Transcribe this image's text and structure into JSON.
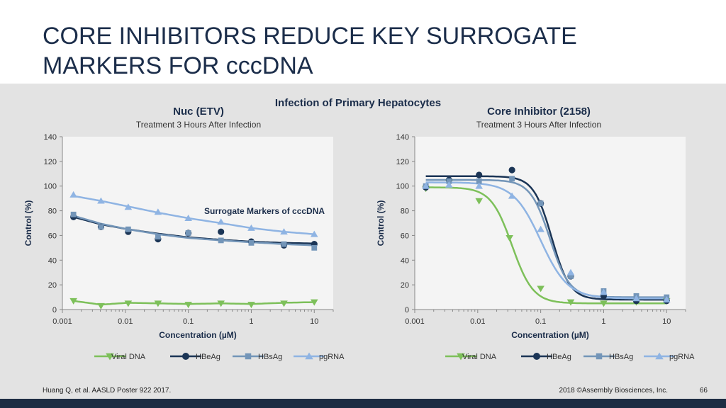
{
  "slide": {
    "title_line1": "CORE INHIBITORS REDUCE KEY SURROGATE",
    "title_line2": "MARKERS FOR cccDNA",
    "section_title": "Infection of Primary Hepatocytes",
    "footer_citation": "Huang Q, et al. AASLD Poster 922 2017.",
    "footer_copyright": "2018 ©Assembly Biosciences, Inc.",
    "page_number": "66"
  },
  "colors": {
    "viral_dna": "#7dc05a",
    "hbeag": "#1b3556",
    "hbsag": "#7395b8",
    "pgrna": "#8fb4e3"
  },
  "chart_data": [
    {
      "type": "scatter",
      "title": "Nuc (ETV)",
      "subtitle": "Treatment 3 Hours After Infection",
      "annotation": "Surrogate Markers of cccDNA",
      "xlabel": "Concentration (µM)",
      "ylabel": "Control (%)",
      "xscale": "log",
      "xlim": [
        0.001,
        20
      ],
      "ylim": [
        0,
        140
      ],
      "xticks": [
        0.001,
        0.01,
        0.1,
        1,
        10
      ],
      "xtick_labels": [
        "0.001",
        "0.01",
        "0.1",
        "1",
        "10"
      ],
      "yticks": [
        0,
        20,
        40,
        60,
        80,
        100,
        120,
        140
      ],
      "ytick_labels": [
        "0",
        "20",
        "40",
        "60",
        "80",
        "100",
        "120",
        "140"
      ],
      "legend_position": "bottom",
      "series": [
        {
          "name": "Viral DNA",
          "marker": "triangle-down",
          "x": [
            0.0015,
            0.0041,
            0.0111,
            0.033,
            0.1,
            0.33,
            1,
            3.3,
            10
          ],
          "y": [
            7,
            3,
            5,
            5,
            4,
            5,
            4,
            5,
            6
          ],
          "fit": [
            [
              0.0015,
              7
            ],
            [
              0.0041,
              4
            ],
            [
              0.0111,
              5.5
            ],
            [
              0.033,
              5
            ],
            [
              0.1,
              4.5
            ],
            [
              0.33,
              5
            ],
            [
              1,
              4.5
            ],
            [
              3.3,
              5.5
            ],
            [
              10,
              6
            ]
          ]
        },
        {
          "name": "HBeAg",
          "marker": "circle",
          "x": [
            0.0015,
            0.0041,
            0.0111,
            0.033,
            0.1,
            0.33,
            1,
            3.3,
            10
          ],
          "y": [
            75,
            67,
            63,
            57,
            62,
            63,
            55,
            52,
            53
          ],
          "fit": [
            [
              0.0015,
              75
            ],
            [
              0.0041,
              69
            ],
            [
              0.0111,
              65
            ],
            [
              0.033,
              61.5
            ],
            [
              0.1,
              58.5
            ],
            [
              0.33,
              56.5
            ],
            [
              1,
              55
            ],
            [
              3.3,
              54
            ],
            [
              10,
              53.5
            ]
          ]
        },
        {
          "name": "HBsAg",
          "marker": "square",
          "x": [
            0.0015,
            0.0041,
            0.0111,
            0.033,
            0.1,
            0.33,
            1,
            3.3,
            10
          ],
          "y": [
            77,
            67,
            65,
            59,
            62,
            56,
            54,
            53,
            50
          ],
          "fit": [
            [
              0.0015,
              76
            ],
            [
              0.0041,
              69.5
            ],
            [
              0.0111,
              65
            ],
            [
              0.033,
              61
            ],
            [
              0.1,
              58
            ],
            [
              0.33,
              56
            ],
            [
              1,
              54.5
            ],
            [
              3.3,
              53
            ],
            [
              10,
              52
            ]
          ]
        },
        {
          "name": "pgRNA",
          "marker": "triangle-up",
          "x": [
            0.0015,
            0.0041,
            0.0111,
            0.033,
            0.1,
            0.33,
            1,
            3.3,
            10
          ],
          "y": [
            93,
            88,
            83,
            79,
            74,
            71,
            66,
            63,
            61
          ],
          "fit": [
            [
              0.0015,
              92
            ],
            [
              0.0041,
              88
            ],
            [
              0.0111,
              83.5
            ],
            [
              0.033,
              78.5
            ],
            [
              0.1,
              74
            ],
            [
              0.33,
              70
            ],
            [
              1,
              66
            ],
            [
              3.3,
              63
            ],
            [
              10,
              61
            ]
          ]
        }
      ]
    },
    {
      "type": "scatter",
      "title": "Core Inhibitor (2158)",
      "subtitle": "Treatment 3 Hours After Infection",
      "xlabel": "Concentration (µM)",
      "ylabel": "Control (%)",
      "xscale": "log",
      "xlim": [
        0.001,
        20
      ],
      "ylim": [
        0,
        140
      ],
      "xticks": [
        0.001,
        0.01,
        0.1,
        1,
        10
      ],
      "xtick_labels": [
        "0.001",
        "0.01",
        "0.1",
        "1",
        "10"
      ],
      "yticks": [
        0,
        20,
        40,
        60,
        80,
        100,
        120,
        140
      ],
      "ytick_labels": [
        "0",
        "20",
        "40",
        "60",
        "80",
        "100",
        "120",
        "140"
      ],
      "legend_position": "bottom",
      "series": [
        {
          "name": "Viral DNA",
          "marker": "triangle-down",
          "x": [
            0.0015,
            0.0035,
            0.0105,
            0.032,
            0.1,
            0.3,
            1,
            3.3,
            10
          ],
          "y": [
            98,
            103,
            88,
            58,
            17,
            6,
            5,
            6,
            7
          ],
          "top": 99,
          "bottom": 5,
          "ic50": 0.035,
          "hill": 2.6
        },
        {
          "name": "HBeAg",
          "marker": "circle",
          "x": [
            0.0015,
            0.0035,
            0.0105,
            0.035,
            0.1,
            0.3,
            1,
            3.3,
            10
          ],
          "y": [
            99,
            105,
            109,
            113,
            86,
            27,
            11,
            7,
            7
          ],
          "top": 108,
          "bottom": 8,
          "ic50": 0.15,
          "hill": 3.0
        },
        {
          "name": "HBsAg",
          "marker": "square",
          "x": [
            0.0015,
            0.0035,
            0.0105,
            0.035,
            0.1,
            0.3,
            1,
            3.3,
            10
          ],
          "y": [
            100,
            104,
            104,
            106,
            86,
            27,
            15,
            11,
            10
          ],
          "top": 105,
          "bottom": 10,
          "ic50": 0.14,
          "hill": 2.8
        },
        {
          "name": "pgRNA",
          "marker": "triangle-up",
          "x": [
            0.0015,
            0.0035,
            0.0105,
            0.035,
            0.1,
            0.3,
            1,
            3.3,
            10
          ],
          "y": [
            100,
            101,
            100,
            92,
            65,
            30,
            14,
            9,
            8
          ],
          "top": 103,
          "bottom": 9,
          "ic50": 0.1,
          "hill": 2.0
        }
      ]
    }
  ]
}
